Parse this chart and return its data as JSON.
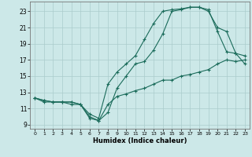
{
  "xlabel": "Humidex (Indice chaleur)",
  "background_color": "#cce8e8",
  "grid_color": "#aacccc",
  "line_color": "#1a6b5a",
  "xlim": [
    -0.5,
    23.5
  ],
  "ylim": [
    8.5,
    24.2
  ],
  "xticks": [
    0,
    1,
    2,
    3,
    4,
    5,
    6,
    7,
    8,
    9,
    10,
    11,
    12,
    13,
    14,
    15,
    16,
    17,
    18,
    19,
    20,
    21,
    22,
    23
  ],
  "yticks": [
    9,
    11,
    13,
    15,
    17,
    19,
    21,
    23
  ],
  "line1_x": [
    0,
    1,
    2,
    3,
    4,
    5,
    6,
    7,
    8,
    9,
    10,
    11,
    12,
    13,
    14,
    15,
    16,
    17,
    18,
    19,
    20,
    21,
    22,
    23
  ],
  "line1_y": [
    12.3,
    12.0,
    11.8,
    11.8,
    11.8,
    11.5,
    10.0,
    9.5,
    10.5,
    13.5,
    15.0,
    16.5,
    16.8,
    18.2,
    20.2,
    23.0,
    23.2,
    23.5,
    23.5,
    23.0,
    21.0,
    20.5,
    17.8,
    16.5
  ],
  "line2_x": [
    0,
    1,
    2,
    3,
    4,
    5,
    6,
    7,
    8,
    9,
    10,
    11,
    12,
    13,
    14,
    15,
    16,
    17,
    18,
    19,
    20,
    21,
    22,
    23
  ],
  "line2_y": [
    12.3,
    12.0,
    11.8,
    11.8,
    11.8,
    11.5,
    10.3,
    9.8,
    14.0,
    15.5,
    16.5,
    17.5,
    19.5,
    21.5,
    23.0,
    23.2,
    23.3,
    23.5,
    23.5,
    23.2,
    20.5,
    18.0,
    17.8,
    17.5
  ],
  "line3_x": [
    0,
    1,
    2,
    3,
    4,
    5,
    6,
    7,
    8,
    9,
    10,
    11,
    12,
    13,
    14,
    15,
    16,
    17,
    18,
    19,
    20,
    21,
    22,
    23
  ],
  "line3_y": [
    12.3,
    11.8,
    11.8,
    11.8,
    11.5,
    11.5,
    9.8,
    9.5,
    11.5,
    12.5,
    12.8,
    13.2,
    13.5,
    14.0,
    14.5,
    14.5,
    15.0,
    15.2,
    15.5,
    15.8,
    16.5,
    17.0,
    16.8,
    17.0
  ]
}
